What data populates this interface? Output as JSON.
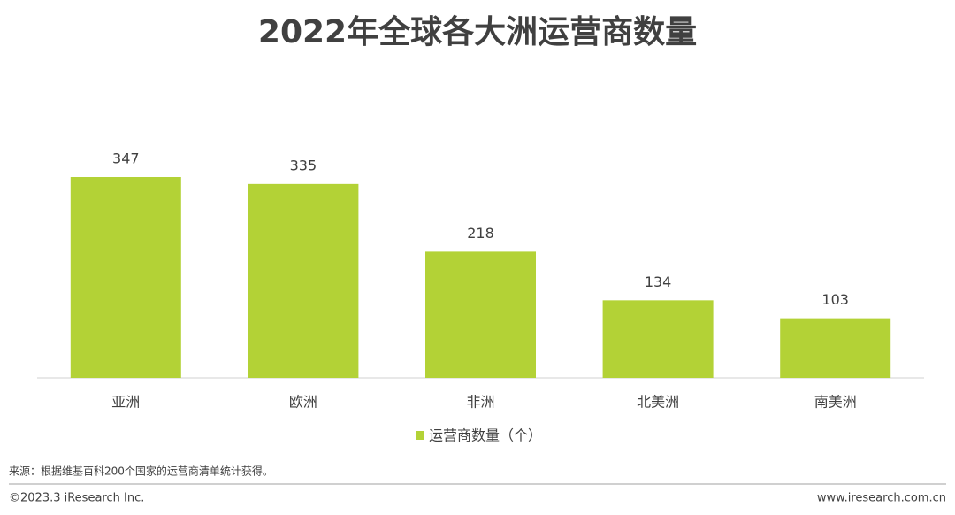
{
  "chart_data": {
    "type": "bar",
    "title": "2022年全球各大洲运营商数量",
    "categories": [
      "亚洲",
      "欧洲",
      "非洲",
      "北美洲",
      "南美洲"
    ],
    "series": [
      {
        "name": "运营商数量（个）",
        "color": "#b3d236",
        "values": [
          347,
          335,
          218,
          134,
          103
        ]
      }
    ],
    "legend": "bottom"
  },
  "source": "来源：根据维基百科200个国家的运营商清单统计获得。",
  "footer": {
    "left": "©2023.3 iResearch Inc.",
    "right": "www.iresearch.com.cn"
  }
}
